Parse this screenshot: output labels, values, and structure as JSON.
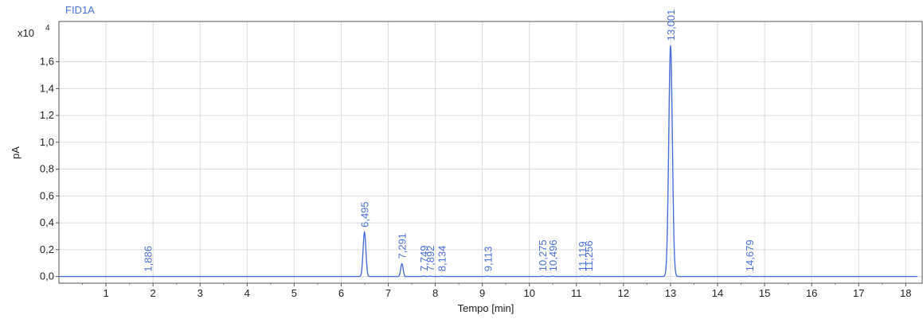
{
  "chart_data": {
    "type": "line",
    "title": "FID1A",
    "xlabel": "Tempo [min]",
    "ylabel": "pA",
    "y_multiplier": "x10",
    "y_exponent": "4",
    "xlim": [
      0,
      18.35
    ],
    "ylim": [
      -0.05,
      1.9
    ],
    "grid": true,
    "x_ticks": [
      1,
      2,
      3,
      4,
      5,
      6,
      7,
      8,
      9,
      10,
      11,
      12,
      13,
      14,
      15,
      16,
      17,
      18
    ],
    "y_ticks": [
      {
        "value": 0.0,
        "label": "0,0"
      },
      {
        "value": 0.2,
        "label": "0,2"
      },
      {
        "value": 0.4,
        "label": "0,4"
      },
      {
        "value": 0.6,
        "label": "0,6"
      },
      {
        "value": 0.8,
        "label": "0,8"
      },
      {
        "value": 1.0,
        "label": "1,0"
      },
      {
        "value": 1.2,
        "label": "1,2"
      },
      {
        "value": 1.4,
        "label": "1,4"
      },
      {
        "value": 1.6,
        "label": "1,6"
      }
    ],
    "x_end": 18.25,
    "baseline": 0.0,
    "series_color": "#4a6fd8",
    "peaks": [
      {
        "time": 1.886,
        "label": "1,886",
        "height": 0.0,
        "width": 0.05
      },
      {
        "time": 6.495,
        "label": "6,495",
        "height": 0.33,
        "width": 0.07
      },
      {
        "time": 7.291,
        "label": "7,291",
        "height": 0.095,
        "width": 0.06
      },
      {
        "time": 7.749,
        "label": "7,749",
        "height": 0.003,
        "width": 0.05
      },
      {
        "time": 7.892,
        "label": "7,892",
        "height": 0.003,
        "width": 0.05
      },
      {
        "time": 8.134,
        "label": "8,134",
        "height": 0.002,
        "width": 0.05
      },
      {
        "time": 9.113,
        "label": "9,113",
        "height": 0.002,
        "width": 0.05
      },
      {
        "time": 10.275,
        "label": "10,275",
        "height": 0.002,
        "width": 0.05
      },
      {
        "time": 10.496,
        "label": "10,496",
        "height": 0.002,
        "width": 0.05
      },
      {
        "time": 11.119,
        "label": "11,119",
        "height": 0.002,
        "width": 0.05
      },
      {
        "time": 11.256,
        "label": "11,256",
        "height": 0.002,
        "width": 0.05
      },
      {
        "time": 13.001,
        "label": "13,001",
        "height": 1.72,
        "width": 0.09
      },
      {
        "time": 14.679,
        "label": "14,679",
        "height": 0.002,
        "width": 0.05
      }
    ]
  }
}
